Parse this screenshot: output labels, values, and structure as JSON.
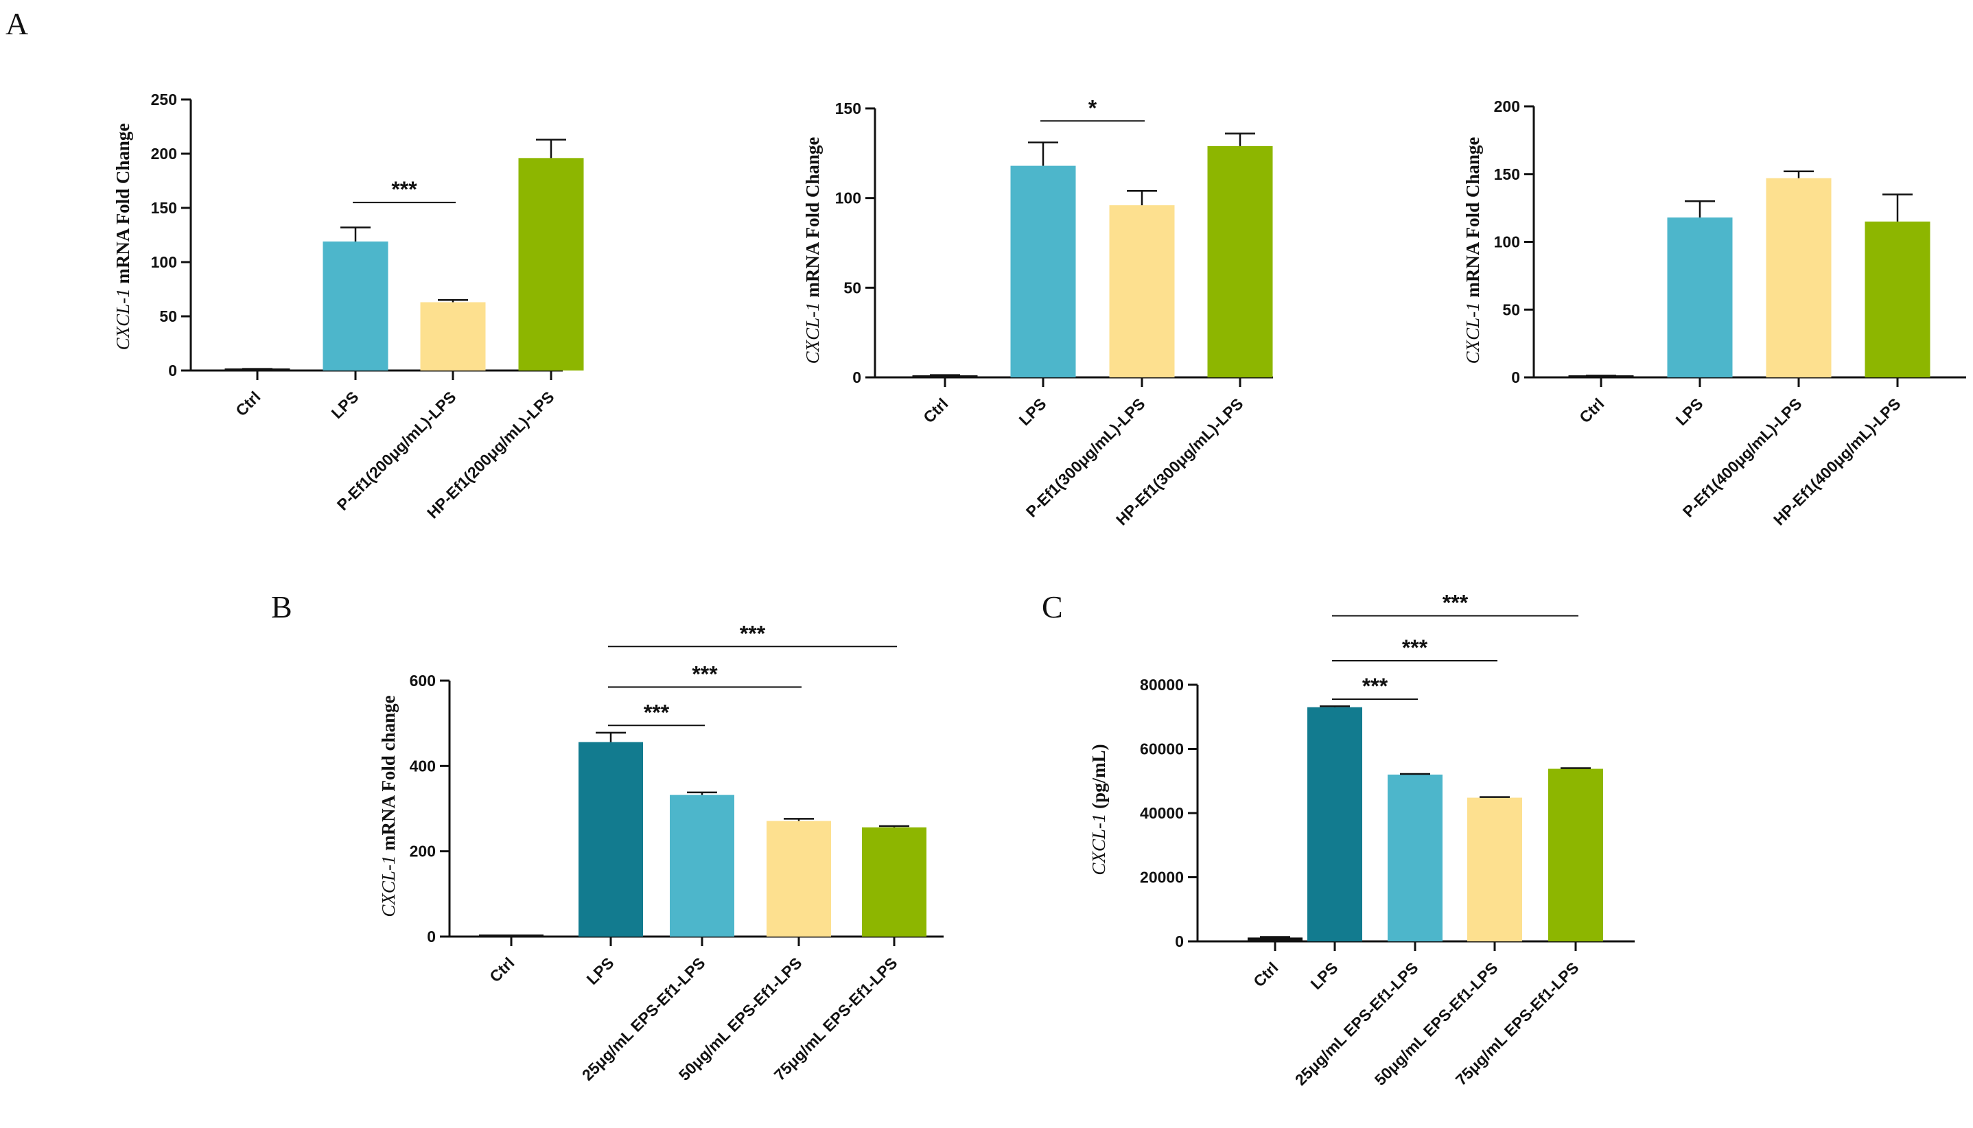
{
  "figure": {
    "panel_letters": {
      "A": "A",
      "B": "B",
      "C": "C"
    },
    "colors": {
      "ctrl": "#111111",
      "lps_light": "#4db6cb",
      "lps_dark": "#127b8f",
      "yellow": "#fde08f",
      "green": "#8db600",
      "teal": "#4db6cb"
    }
  },
  "chart_data": [
    {
      "id": "A1",
      "type": "bar",
      "ylabel_italic": "CXCL-1",
      "ylabel_bold": " mRNA Fold Change",
      "ylim": [
        0,
        250
      ],
      "yticks": [
        0,
        50,
        100,
        150,
        200,
        250
      ],
      "categories": [
        "Ctrl",
        "LPS",
        "P-Ef1(200μg/mL)-LPS",
        "HP-Ef1(200μg/mL)-LPS"
      ],
      "values": [
        1,
        119,
        63,
        196
      ],
      "errors": [
        0.5,
        13,
        2,
        17
      ],
      "colors": [
        "#111111",
        "#4db6cb",
        "#fde08f",
        "#8db600"
      ],
      "significance": [
        {
          "from": 1,
          "to": 2,
          "label": "***",
          "y": 155
        }
      ]
    },
    {
      "id": "A2",
      "type": "bar",
      "ylabel_italic": "CXCL-1",
      "ylabel_bold": " mRNA Fold Change",
      "ylim": [
        0,
        150
      ],
      "yticks": [
        0,
        50,
        100,
        150
      ],
      "categories": [
        "Ctrl",
        "LPS",
        "P-Ef1(300μg/mL)-LPS",
        "HP-Ef1(300μg/mL)-LPS"
      ],
      "values": [
        1,
        118,
        96,
        129
      ],
      "errors": [
        0.3,
        13,
        8,
        7
      ],
      "colors": [
        "#111111",
        "#4db6cb",
        "#fde08f",
        "#8db600"
      ],
      "significance": [
        {
          "from": 1,
          "to": 2,
          "label": "*",
          "y": 143
        }
      ]
    },
    {
      "id": "A3",
      "type": "bar",
      "ylabel_italic": "CXCL-1",
      "ylabel_bold": " mRNA Fold Change",
      "ylim": [
        0,
        200
      ],
      "yticks": [
        0,
        50,
        100,
        150,
        200
      ],
      "categories": [
        "Ctrl",
        "LPS",
        "P-Ef1(400μg/mL)-LPS",
        "HP-Ef1(400μg/mL)-LPS"
      ],
      "values": [
        1,
        118,
        147,
        115
      ],
      "errors": [
        0.3,
        12,
        5,
        20
      ],
      "colors": [
        "#111111",
        "#4db6cb",
        "#fde08f",
        "#8db600"
      ],
      "significance": []
    },
    {
      "id": "B",
      "type": "bar",
      "ylabel_italic": "CXCL-1",
      "ylabel_bold": " mRNA Fold change",
      "ylim": [
        0,
        600
      ],
      "yticks": [
        0,
        200,
        400,
        600
      ],
      "categories": [
        "Ctrl",
        "LPS",
        "25μg/mL EPS-Ef1-LPS",
        "50μg/mL EPS-Ef1-LPS",
        "75μg/mL EPS-Ef1-LPS"
      ],
      "values": [
        1,
        456,
        332,
        271,
        256
      ],
      "errors": [
        0.3,
        22,
        6,
        5,
        3
      ],
      "colors": [
        "#111111",
        "#127b8f",
        "#4db6cb",
        "#fde08f",
        "#8db600"
      ],
      "significance": [
        {
          "from": 1,
          "to": 2,
          "label": "***",
          "y": 495
        },
        {
          "from": 1,
          "to": 3,
          "label": "***",
          "y": 585
        },
        {
          "from": 1,
          "to": 4,
          "label": "***",
          "y": 680
        }
      ]
    },
    {
      "id": "C",
      "type": "bar",
      "ylabel_italic": "CXCL-1",
      "ylabel_bold": " (pg/mL)",
      "ylim": [
        0,
        80000
      ],
      "yticks": [
        0,
        20000,
        40000,
        60000,
        80000
      ],
      "categories": [
        "Ctrl",
        "LPS",
        "25μg/mL EPS-Ef1-LPS",
        "50μg/mL EPS-Ef1-LPS",
        "75μg/mL EPS-Ef1-LPS"
      ],
      "values": [
        1200,
        73000,
        52000,
        44800,
        53800
      ],
      "errors": [
        200,
        300,
        200,
        200,
        200
      ],
      "colors": [
        "#111111",
        "#127b8f",
        "#4db6cb",
        "#fde08f",
        "#8db600"
      ],
      "significance": [
        {
          "from": 1,
          "to": 2,
          "label": "***",
          "y": 75500
        },
        {
          "from": 1,
          "to": 3,
          "label": "***",
          "y": 87500
        },
        {
          "from": 1,
          "to": 4,
          "label": "***",
          "y": 101500
        }
      ]
    }
  ]
}
